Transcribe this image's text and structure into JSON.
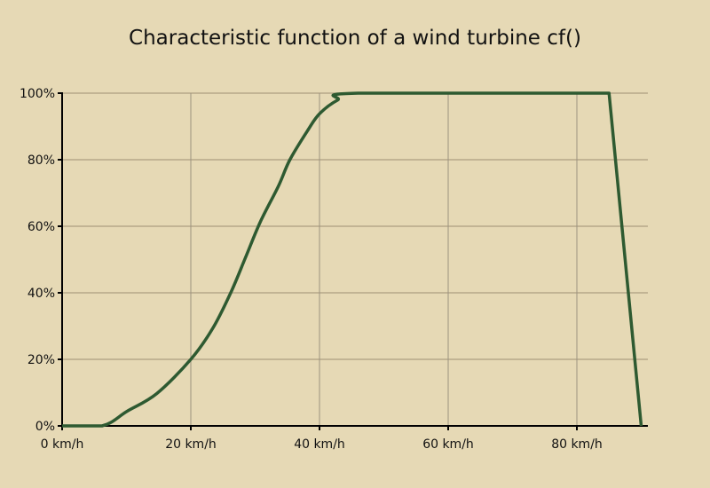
{
  "chart_data": {
    "type": "line",
    "title": "Characteristic function of a wind turbine  cf()",
    "xlabel": "",
    "ylabel": "",
    "xlim": [
      0,
      91
    ],
    "ylim": [
      0,
      100
    ],
    "grid": true,
    "x_ticks": [
      0,
      20,
      40,
      60,
      80
    ],
    "x_tick_labels": [
      "0 km/h",
      "20 km/h",
      "40 km/h",
      "60 km/h",
      "80 km/h"
    ],
    "y_ticks": [
      0,
      20,
      40,
      60,
      80,
      100
    ],
    "y_tick_labels": [
      "0%",
      "20%",
      "40%",
      "60%",
      "80%",
      "100%"
    ],
    "colors": {
      "line": "#2e5a31",
      "background": "#e6d9b5"
    },
    "series": [
      {
        "name": "cf",
        "x": [
          0,
          6.2,
          10.1,
          14.7,
          20,
          23.4,
          26.2,
          28.5,
          30.8,
          33.6,
          35.4,
          38.2,
          40,
          42.8,
          46,
          85,
          90
        ],
        "y": [
          0,
          0,
          4.4,
          9.7,
          20,
          29.3,
          40,
          50.6,
          61.3,
          72,
          80,
          88.9,
          93.8,
          97.9,
          100,
          100,
          0
        ]
      }
    ]
  }
}
